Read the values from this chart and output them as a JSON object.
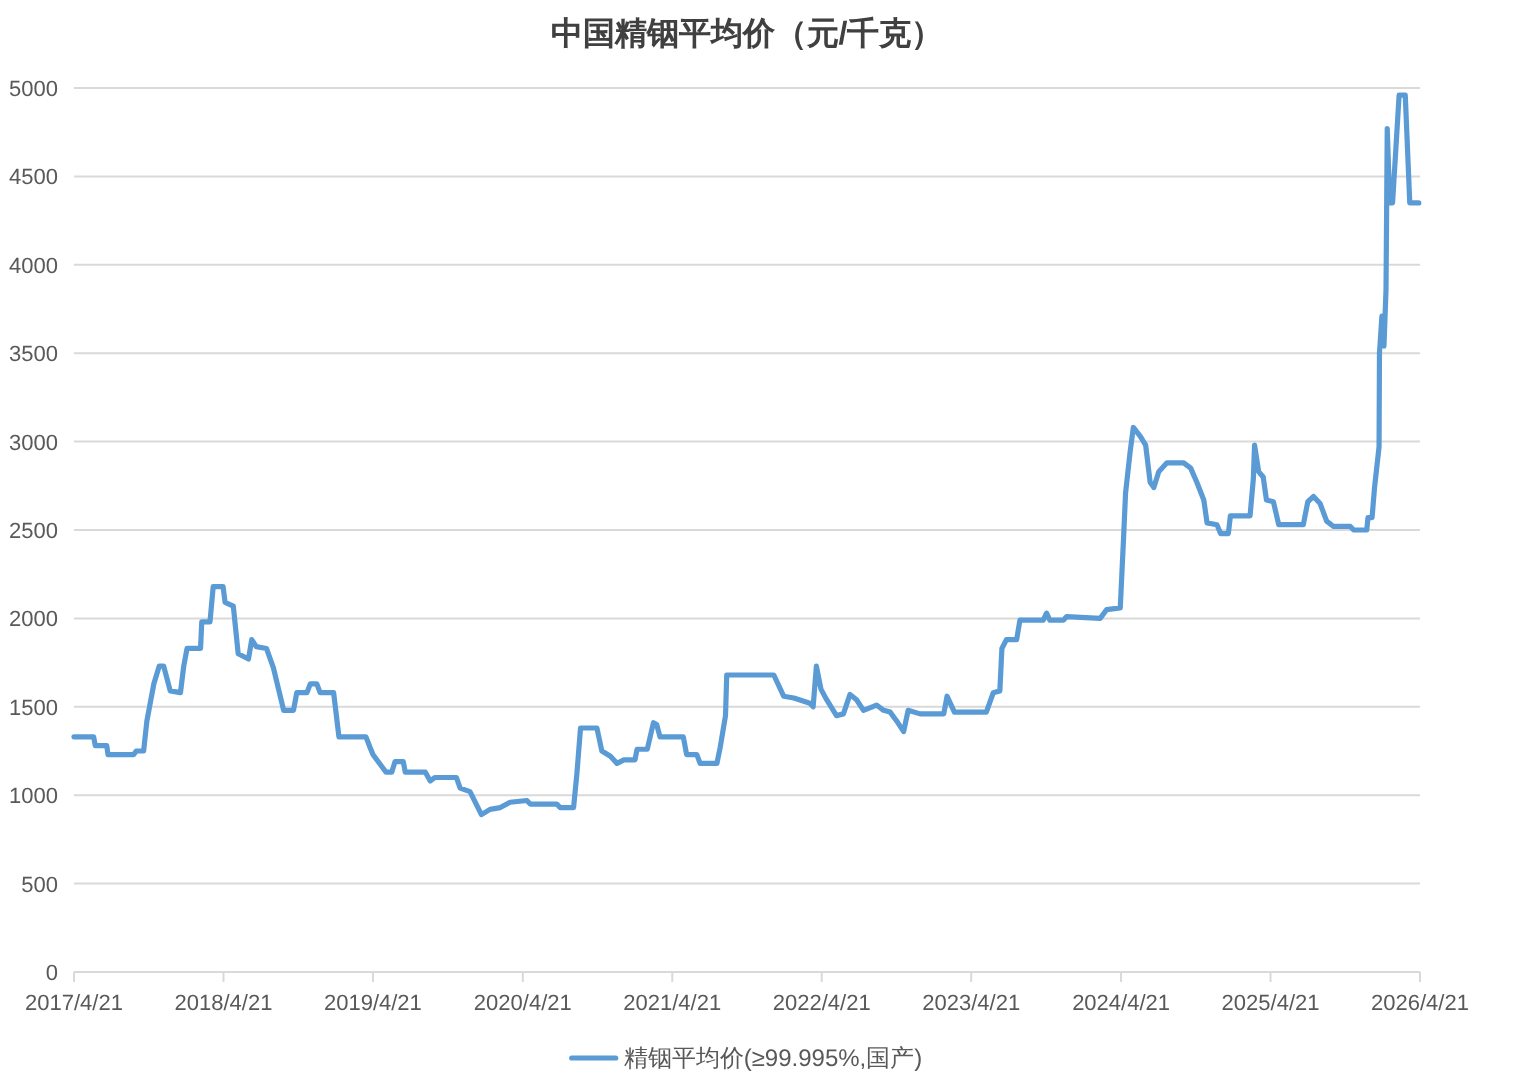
{
  "chart_data": {
    "type": "line",
    "title": "中国精铟平均价（元/千克）",
    "x": [
      "2017-04-21",
      "2017-06-08",
      "2017-06-12",
      "2017-07-10",
      "2017-07-13",
      "2017-09-14",
      "2017-09-20",
      "2017-10-08",
      "2017-10-16",
      "2017-11-02",
      "2017-11-15",
      "2017-11-26",
      "2017-12-12",
      "2018-01-06",
      "2018-01-14",
      "2018-01-22",
      "2018-02-24",
      "2018-02-27",
      "2018-03-19",
      "2018-03-27",
      "2018-04-20",
      "2018-04-25",
      "2018-05-15",
      "2018-05-27",
      "2018-06-21",
      "2018-06-29",
      "2018-07-10",
      "2018-08-04",
      "2018-08-21",
      "2018-09-15",
      "2018-10-09",
      "2018-10-17",
      "2018-11-11",
      "2018-11-19",
      "2018-12-05",
      "2018-12-13",
      "2019-01-15",
      "2019-01-28",
      "2019-04-04",
      "2019-04-14",
      "2019-04-21",
      "2019-05-23",
      "2019-06-06",
      "2019-06-14",
      "2019-07-04",
      "2019-07-09",
      "2019-08-27",
      "2019-09-08",
      "2019-09-19",
      "2019-11-11",
      "2019-11-20",
      "2019-12-14",
      "2020-01-11",
      "2020-02-01",
      "2020-02-26",
      "2020-03-21",
      "2020-05-01",
      "2020-05-09",
      "2020-07-13",
      "2020-07-21",
      "2020-08-23",
      "2020-08-31",
      "2020-09-09",
      "2020-10-19",
      "2020-10-31",
      "2020-11-21",
      "2020-12-07",
      "2020-12-24",
      "2021-01-20",
      "2021-01-25",
      "2021-02-19",
      "2021-03-06",
      "2021-03-14",
      "2021-03-22",
      "2021-05-18",
      "2021-05-26",
      "2021-06-20",
      "2021-06-28",
      "2021-08-08",
      "2021-08-16",
      "2021-08-29",
      "2021-09-01",
      "2021-12-25",
      "2022-01-18",
      "2022-02-12",
      "2022-03-23",
      "2022-03-31",
      "2022-04-08",
      "2022-04-19",
      "2022-05-03",
      "2022-05-27",
      "2022-06-13",
      "2022-06-29",
      "2022-07-15",
      "2022-08-01",
      "2022-09-02",
      "2022-09-19",
      "2022-10-05",
      "2022-10-21",
      "2022-11-07",
      "2022-11-18",
      "2022-12-17",
      "2023-02-13",
      "2023-02-21",
      "2023-03-11",
      "2023-05-28",
      "2023-06-14",
      "2023-06-30",
      "2023-07-05",
      "2023-07-16",
      "2023-08-10",
      "2023-08-18",
      "2023-10-14",
      "2023-10-22",
      "2023-10-30",
      "2023-12-02",
      "2023-12-10",
      "2024-03-01",
      "2024-03-17",
      "2024-04-19",
      "2024-04-27",
      "2024-05-02",
      "2024-05-13",
      "2024-05-21",
      "2024-06-07",
      "2024-06-20",
      "2024-07-01",
      "2024-07-10",
      "2024-07-22",
      "2024-08-11",
      "2024-09-21",
      "2024-10-08",
      "2024-10-23",
      "2024-11-09",
      "2024-11-17",
      "2024-12-11",
      "2024-12-20",
      "2025-01-08",
      "2025-01-13",
      "2025-03-02",
      "2025-03-10",
      "2025-03-13",
      "2025-03-23",
      "2025-04-03",
      "2025-04-11",
      "2025-04-28",
      "2025-05-11",
      "2025-07-10",
      "2025-07-21",
      "2025-08-04",
      "2025-08-20",
      "2025-09-05",
      "2025-09-22",
      "2025-11-02",
      "2025-11-10",
      "2025-12-12",
      "2025-12-15",
      "2025-12-25",
      "2025-12-31",
      "2026-01-11",
      "2026-01-12",
      "2026-01-18",
      "2026-01-23",
      "2026-01-28",
      "2026-01-31",
      "2026-02-06",
      "2026-02-13",
      "2026-03-01",
      "2026-03-16",
      "2026-03-27",
      "2026-04-18"
    ],
    "series": [
      {
        "name": "精铟平均价(≥99.995%,国产)",
        "color": "#5b9bd5",
        "values": [
          1330,
          1330,
          1280,
          1280,
          1230,
          1230,
          1250,
          1250,
          1420,
          1630,
          1730,
          1730,
          1590,
          1580,
          1730,
          1830,
          1830,
          1980,
          1980,
          2180,
          2180,
          2090,
          2070,
          1800,
          1770,
          1880,
          1840,
          1830,
          1720,
          1480,
          1480,
          1580,
          1580,
          1630,
          1630,
          1580,
          1580,
          1330,
          1330,
          1270,
          1230,
          1130,
          1130,
          1190,
          1190,
          1130,
          1130,
          1080,
          1100,
          1100,
          1040,
          1020,
          890,
          920,
          930,
          960,
          970,
          950,
          950,
          930,
          930,
          1120,
          1380,
          1380,
          1250,
          1220,
          1180,
          1200,
          1200,
          1260,
          1260,
          1410,
          1400,
          1330,
          1330,
          1230,
          1230,
          1180,
          1180,
          1270,
          1450,
          1680,
          1680,
          1560,
          1550,
          1520,
          1500,
          1730,
          1600,
          1540,
          1450,
          1460,
          1570,
          1540,
          1480,
          1510,
          1480,
          1470,
          1420,
          1360,
          1480,
          1460,
          1460,
          1560,
          1470,
          1470,
          1580,
          1590,
          1830,
          1880,
          1880,
          1990,
          1990,
          2030,
          1990,
          1990,
          2010,
          2000,
          2050,
          2060,
          2450,
          2710,
          2940,
          3080,
          3030,
          2980,
          2770,
          2740,
          2830,
          2880,
          2880,
          2850,
          2770,
          2670,
          2540,
          2530,
          2480,
          2480,
          2580,
          2580,
          2790,
          2980,
          2830,
          2800,
          2670,
          2660,
          2530,
          2530,
          2660,
          2690,
          2650,
          2550,
          2520,
          2520,
          2500,
          2500,
          2570,
          2570,
          2740,
          2970,
          3500,
          3710,
          3540,
          3860,
          4770,
          4350,
          4350,
          4960,
          4960,
          4350,
          4350
        ]
      }
    ],
    "xlim": [
      "2017-04-21",
      "2026-04-21"
    ],
    "xticks": [
      {
        "value": "2017-04-21",
        "label": "2017/4/21"
      },
      {
        "value": "2018-04-21",
        "label": "2018/4/21"
      },
      {
        "value": "2019-04-21",
        "label": "2019/4/21"
      },
      {
        "value": "2020-04-21",
        "label": "2020/4/21"
      },
      {
        "value": "2021-04-21",
        "label": "2021/4/21"
      },
      {
        "value": "2022-04-21",
        "label": "2022/4/21"
      },
      {
        "value": "2023-04-21",
        "label": "2023/4/21"
      },
      {
        "value": "2024-04-21",
        "label": "2024/4/21"
      },
      {
        "value": "2025-04-21",
        "label": "2025/4/21"
      },
      {
        "value": "2026-04-21",
        "label": "2026/4/21"
      }
    ],
    "ylim": [
      0,
      5000
    ],
    "yticks": [
      0,
      500,
      1000,
      1500,
      2000,
      2500,
      3000,
      3500,
      4000,
      4500,
      5000
    ],
    "grid": "y",
    "legend": "bottom",
    "line_style": "solid"
  }
}
